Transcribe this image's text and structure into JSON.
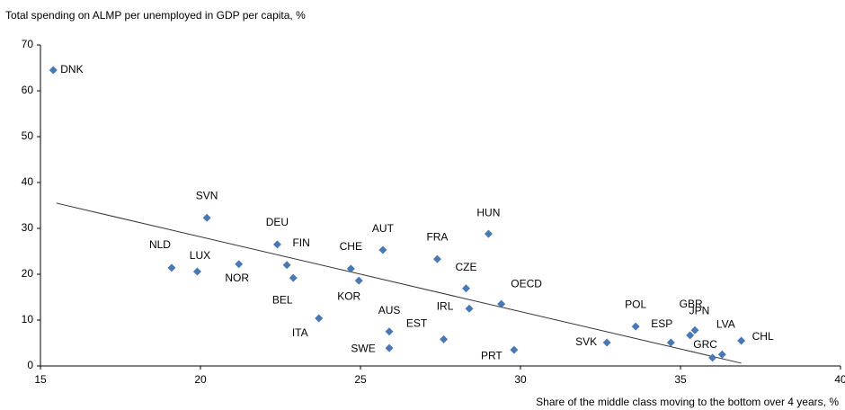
{
  "chart_data": {
    "type": "scatter",
    "ylabel": "Total spending on ALMP per unemployed in GDP per capita,  %",
    "xlabel": "Share of the middle class moving to the bottom over 4 years, %",
    "color": "#4a78b4",
    "series": [
      {
        "labels": [
          "DNK",
          "SVN",
          "DEU",
          "FIN",
          "BEL",
          "NLD",
          "LUX",
          "NOR",
          "CHE",
          "KOR",
          "AUT",
          "ITA",
          "AUS",
          "SWE",
          "FRA",
          "HUN",
          "CZE",
          "IRL",
          "EST",
          "OECD",
          "PRT",
          "SVK",
          "POL",
          "ESP",
          "GBR",
          "JPN",
          "LVA",
          "GRC",
          "CHL"
        ],
        "x": [
          15.4,
          20.2,
          22.4,
          22.7,
          22.9,
          19.1,
          19.9,
          21.2,
          24.7,
          24.95,
          25.7,
          23.7,
          25.9,
          25.9,
          27.4,
          29.0,
          28.3,
          28.4,
          27.6,
          29.4,
          29.8,
          32.7,
          33.6,
          34.7,
          35.3,
          35.45,
          36.3,
          36.0,
          36.9
        ],
        "values": [
          64.5,
          32.3,
          26.5,
          22,
          19.2,
          21.4,
          20.6,
          22.2,
          21.2,
          18.6,
          25.3,
          10.4,
          7.5,
          3.9,
          23.3,
          28.8,
          16.9,
          12.5,
          5.8,
          13.5,
          3.5,
          5.1,
          8.6,
          5.1,
          6.7,
          7.8,
          2.5,
          1.8,
          5.5
        ]
      }
    ],
    "trendline": {
      "x": [
        15.5,
        36.9
      ],
      "y": [
        35.5,
        0.6
      ]
    },
    "xlim": [
      15,
      40
    ],
    "xticks": [
      15,
      20,
      25,
      30,
      35,
      40
    ],
    "ylim": [
      0,
      70
    ],
    "yticks": [
      0,
      10,
      20,
      30,
      40,
      50,
      60,
      70
    ]
  }
}
